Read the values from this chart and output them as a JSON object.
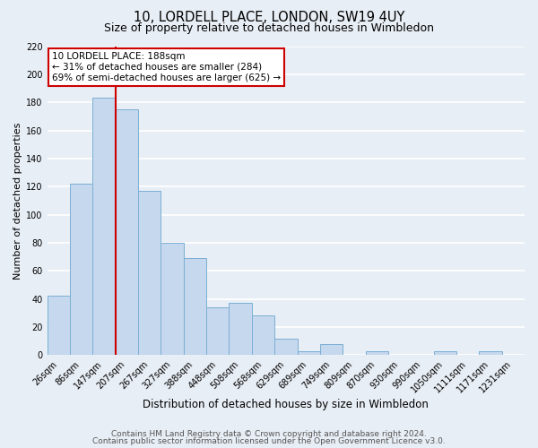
{
  "title": "10, LORDELL PLACE, LONDON, SW19 4UY",
  "subtitle": "Size of property relative to detached houses in Wimbledon",
  "xlabel": "Distribution of detached houses by size in Wimbledon",
  "ylabel": "Number of detached properties",
  "bar_labels": [
    "26sqm",
    "86sqm",
    "147sqm",
    "207sqm",
    "267sqm",
    "327sqm",
    "388sqm",
    "448sqm",
    "508sqm",
    "568sqm",
    "629sqm",
    "689sqm",
    "749sqm",
    "809sqm",
    "870sqm",
    "930sqm",
    "990sqm",
    "1050sqm",
    "1111sqm",
    "1171sqm",
    "1231sqm"
  ],
  "bar_heights": [
    42,
    122,
    183,
    175,
    117,
    80,
    69,
    34,
    37,
    28,
    12,
    3,
    8,
    0,
    3,
    0,
    0,
    3,
    0,
    3,
    0
  ],
  "bar_color": "#c5d8ed",
  "bar_edge_color": "#7bafd4",
  "vline_color": "#cc0000",
  "annotation_title": "10 LORDELL PLACE: 188sqm",
  "annotation_line1": "← 31% of detached houses are smaller (284)",
  "annotation_line2": "69% of semi-detached houses are larger (625) →",
  "annotation_box_color": "#ffffff",
  "annotation_border_color": "#cc0000",
  "ylim": [
    0,
    220
  ],
  "yticks": [
    0,
    20,
    40,
    60,
    80,
    100,
    120,
    140,
    160,
    180,
    200,
    220
  ],
  "footer1": "Contains HM Land Registry data © Crown copyright and database right 2024.",
  "footer2": "Contains public sector information licensed under the Open Government Licence v3.0.",
  "background_color": "#e8eef5",
  "grid_color": "#ffffff",
  "title_fontsize": 10.5,
  "subtitle_fontsize": 9,
  "xlabel_fontsize": 8.5,
  "ylabel_fontsize": 8,
  "tick_fontsize": 7,
  "footer_fontsize": 6.5,
  "annotation_fontsize": 7.5
}
